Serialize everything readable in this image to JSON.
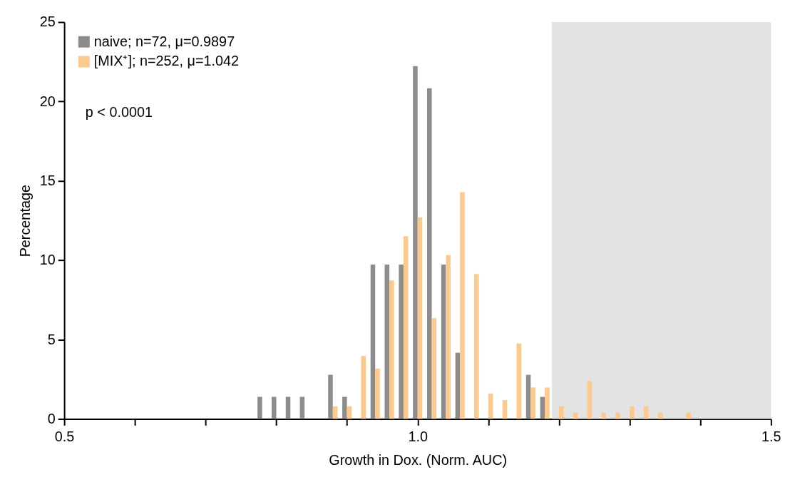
{
  "chart_data": {
    "type": "histogram",
    "xlabel": "Growth in Dox. (Norm. AUC)",
    "ylabel": "Percentage",
    "bins": [
      0.77,
      0.79,
      0.81,
      0.83,
      0.85,
      0.87,
      0.89,
      0.91,
      0.93,
      0.95,
      0.97,
      0.99,
      1.01,
      1.03,
      1.05,
      1.07,
      1.09,
      1.11,
      1.13,
      1.15,
      1.17,
      1.19,
      1.21,
      1.23,
      1.25,
      1.27,
      1.29,
      1.31,
      1.33,
      1.35,
      1.37,
      1.39
    ],
    "series": [
      {
        "name": "naive; n=72, μ=0.9897",
        "color": "#8c8c8c",
        "values": [
          1.39,
          1.39,
          1.39,
          1.39,
          0,
          2.78,
          1.39,
          0,
          9.72,
          9.72,
          9.72,
          22.22,
          20.83,
          9.72,
          4.17,
          0,
          0,
          0,
          0,
          2.78,
          1.39,
          0,
          0,
          0,
          0,
          0,
          0,
          0,
          0,
          0,
          0
        ]
      },
      {
        "name": "[MIX⁺]; n=252, μ=1.042",
        "color": "#fdc98d",
        "values": [
          0,
          0,
          0,
          0,
          0,
          0.79,
          0.79,
          3.97,
          3.17,
          8.73,
          11.51,
          12.7,
          6.35,
          10.32,
          14.29,
          9.13,
          1.59,
          1.19,
          4.76,
          1.98,
          1.98,
          0.79,
          0.4,
          2.38,
          0.4,
          0.4,
          0.79,
          0.79,
          0.4,
          0,
          0.4
        ]
      }
    ],
    "xlim": [
      0.5,
      1.5
    ],
    "xticks": [
      {
        "value": 0.5,
        "label": "0.5"
      },
      {
        "value": 0.6,
        "label": null
      },
      {
        "value": 0.7,
        "label": null
      },
      {
        "value": 0.8,
        "label": null
      },
      {
        "value": 0.9,
        "label": null
      },
      {
        "value": 1.0,
        "label": "1.0"
      },
      {
        "value": 1.1,
        "label": null
      },
      {
        "value": 1.2,
        "label": null
      },
      {
        "value": 1.3,
        "label": null
      },
      {
        "value": 1.4,
        "label": null
      },
      {
        "value": 1.5,
        "label": "1.5"
      }
    ],
    "ylim": [
      0,
      25
    ],
    "yticks": [
      0,
      5,
      10,
      15,
      20,
      25
    ],
    "bands": [
      {
        "axis": "x",
        "from": 1.19,
        "to": 1.5,
        "color": "#e3e3e3"
      }
    ],
    "annotations": [
      "p < 0.0001"
    ],
    "legend": "top left",
    "grid": false
  }
}
